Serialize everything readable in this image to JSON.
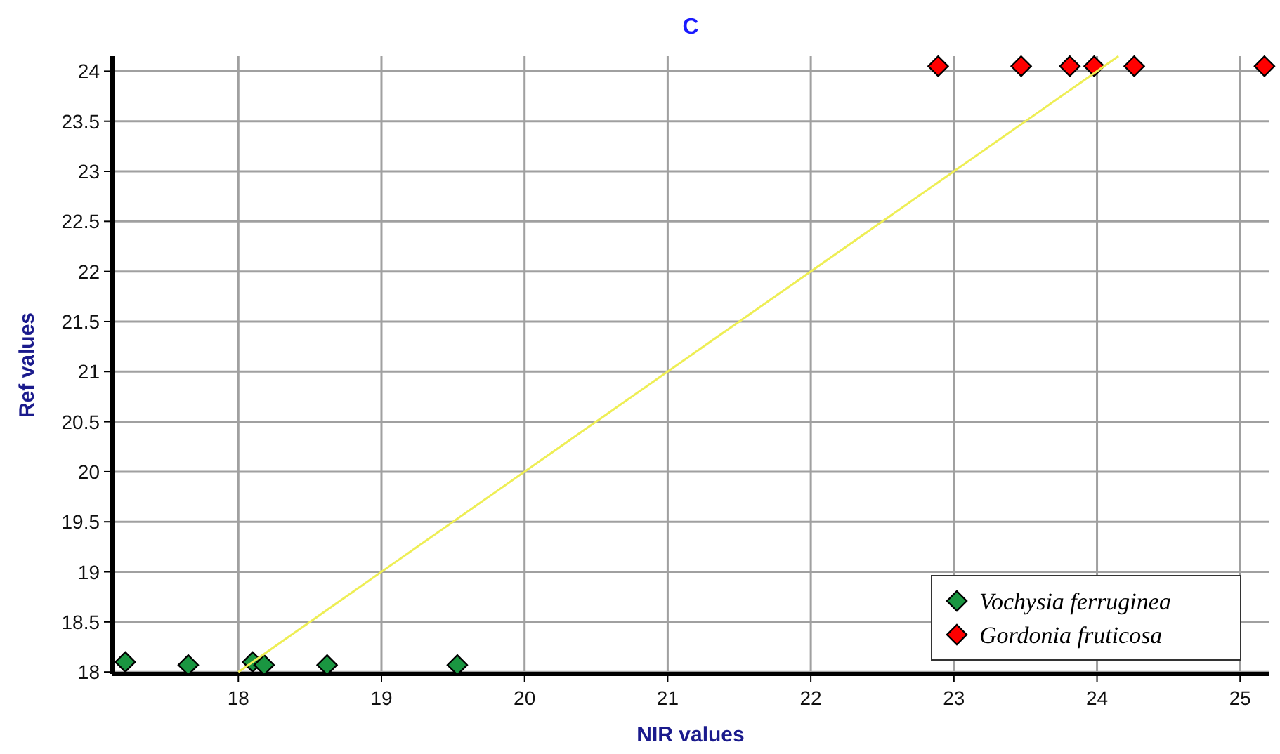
{
  "chart_data": {
    "type": "scatter",
    "title": "C",
    "xlabel": "NIR values",
    "ylabel": "Ref values",
    "xlim": [
      17.12,
      25.2
    ],
    "ylim": [
      17.98,
      24.15
    ],
    "xticks": [
      18,
      19,
      20,
      21,
      22,
      23,
      24,
      25
    ],
    "yticks": [
      18,
      18.5,
      19,
      19.5,
      20,
      20.5,
      21,
      21.5,
      22,
      22.5,
      23,
      23.5,
      24
    ],
    "grid": true,
    "legend": "bottom right",
    "marker": "diamond",
    "series": [
      {
        "name": "Vochysia ferruginea",
        "color": "#1a9641",
        "x": [
          17.21,
          17.65,
          18.1,
          18.18,
          18.62,
          19.53
        ],
        "values": [
          18.1,
          18.07,
          18.1,
          18.07,
          18.07,
          18.07
        ]
      },
      {
        "name": "Gordonia fruticosa",
        "color": "#ff0000",
        "x": [
          22.89,
          23.47,
          23.81,
          23.98,
          24.26,
          25.17
        ],
        "values": [
          24.05,
          24.05,
          24.05,
          24.05,
          24.05,
          24.05
        ]
      },
      {
        "type": "line",
        "color": "#eeee55",
        "marker": "none",
        "x": [
          18,
          24.15
        ],
        "values": [
          18,
          24.15
        ]
      }
    ]
  }
}
